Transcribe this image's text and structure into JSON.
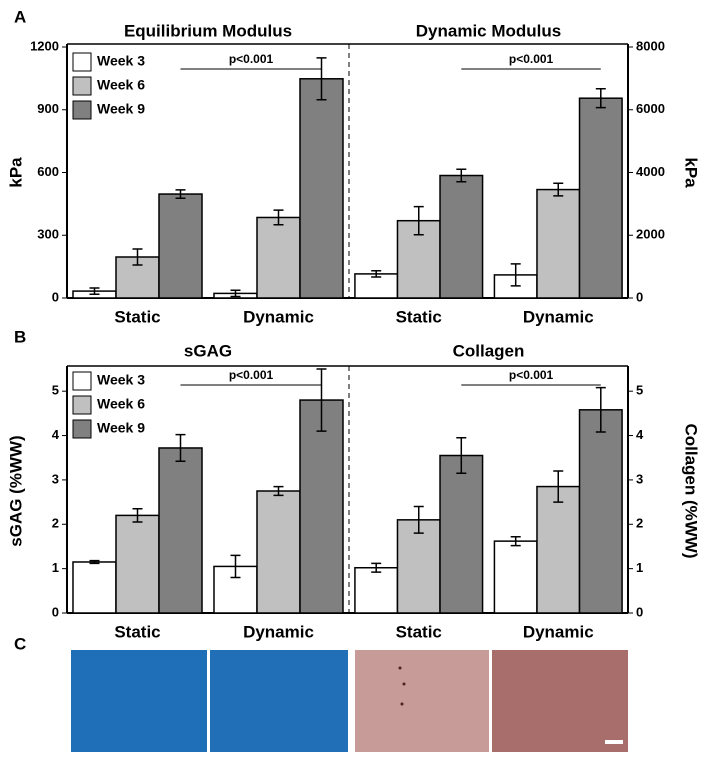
{
  "panels": [
    "A",
    "B",
    "C"
  ],
  "chart_data": [
    {
      "type": "bar",
      "title": "Equilibrium Modulus",
      "ylabel": "kPa",
      "axis_side": "left",
      "legend": "upper left",
      "categories": [
        "Static",
        "Dynamic"
      ],
      "annotation": "p<0.001",
      "series": [
        {
          "name": "Week 3",
          "color": "#ffffff",
          "values": [
            33,
            22
          ],
          "errors": [
            15,
            15
          ]
        },
        {
          "name": "Week 6",
          "color": "#c0c0c0",
          "values": [
            196,
            385
          ],
          "errors": [
            38,
            35
          ]
        },
        {
          "name": "Week 9",
          "color": "#808080",
          "values": [
            497,
            1048
          ],
          "errors": [
            20,
            100
          ]
        }
      ],
      "ylim": [
        0,
        1200
      ],
      "yticks": [
        0,
        300,
        600,
        900,
        1200
      ]
    },
    {
      "type": "bar",
      "title": "Dynamic Modulus",
      "ylabel": "kPa",
      "axis_side": "right",
      "categories": [
        "Static",
        "Dynamic"
      ],
      "annotation": "p<0.001",
      "series": [
        {
          "color": "#ffffff",
          "values": [
            768,
            736
          ],
          "errors": [
            100,
            350
          ]
        },
        {
          "color": "#c0c0c0",
          "values": [
            2464,
            3456
          ],
          "errors": [
            450,
            200
          ]
        },
        {
          "color": "#808080",
          "values": [
            3904,
            6368
          ],
          "errors": [
            200,
            300
          ]
        }
      ],
      "ylim": [
        0,
        8000
      ],
      "yticks": [
        0,
        2000,
        4000,
        6000,
        8000
      ]
    },
    {
      "type": "bar",
      "title": "sGAG",
      "ylabel": "sGAG (%WW)",
      "axis_side": "left",
      "legend": "upper left",
      "categories": [
        "Static",
        "Dynamic"
      ],
      "annotation": "p<0.001",
      "series": [
        {
          "name": "Week 3",
          "color": "#ffffff",
          "values": [
            1.15,
            1.05
          ],
          "errors": [
            0.03,
            0.25
          ]
        },
        {
          "name": "Week 6",
          "color": "#c0c0c0",
          "values": [
            2.2,
            2.75
          ],
          "errors": [
            0.15,
            0.1
          ]
        },
        {
          "name": "Week 9",
          "color": "#808080",
          "values": [
            3.72,
            4.8
          ],
          "errors": [
            0.3,
            0.7
          ]
        }
      ],
      "ylim": [
        0,
        5.5
      ],
      "yticks": [
        0,
        1,
        2,
        3,
        4,
        5
      ]
    },
    {
      "type": "bar",
      "title": "Collagen",
      "ylabel": "Collagen (%WW)",
      "axis_side": "right",
      "categories": [
        "Static",
        "Dynamic"
      ],
      "annotation": "p<0.001",
      "series": [
        {
          "color": "#ffffff",
          "values": [
            1.02,
            1.62
          ],
          "errors": [
            0.1,
            0.1
          ]
        },
        {
          "color": "#c0c0c0",
          "values": [
            2.1,
            2.85
          ],
          "errors": [
            0.3,
            0.35
          ]
        },
        {
          "color": "#808080",
          "values": [
            3.55,
            4.58
          ],
          "errors": [
            0.4,
            0.5
          ]
        }
      ],
      "ylim": [
        0,
        5.5
      ],
      "yticks": [
        0,
        1,
        2,
        3,
        4,
        5
      ]
    }
  ]
}
